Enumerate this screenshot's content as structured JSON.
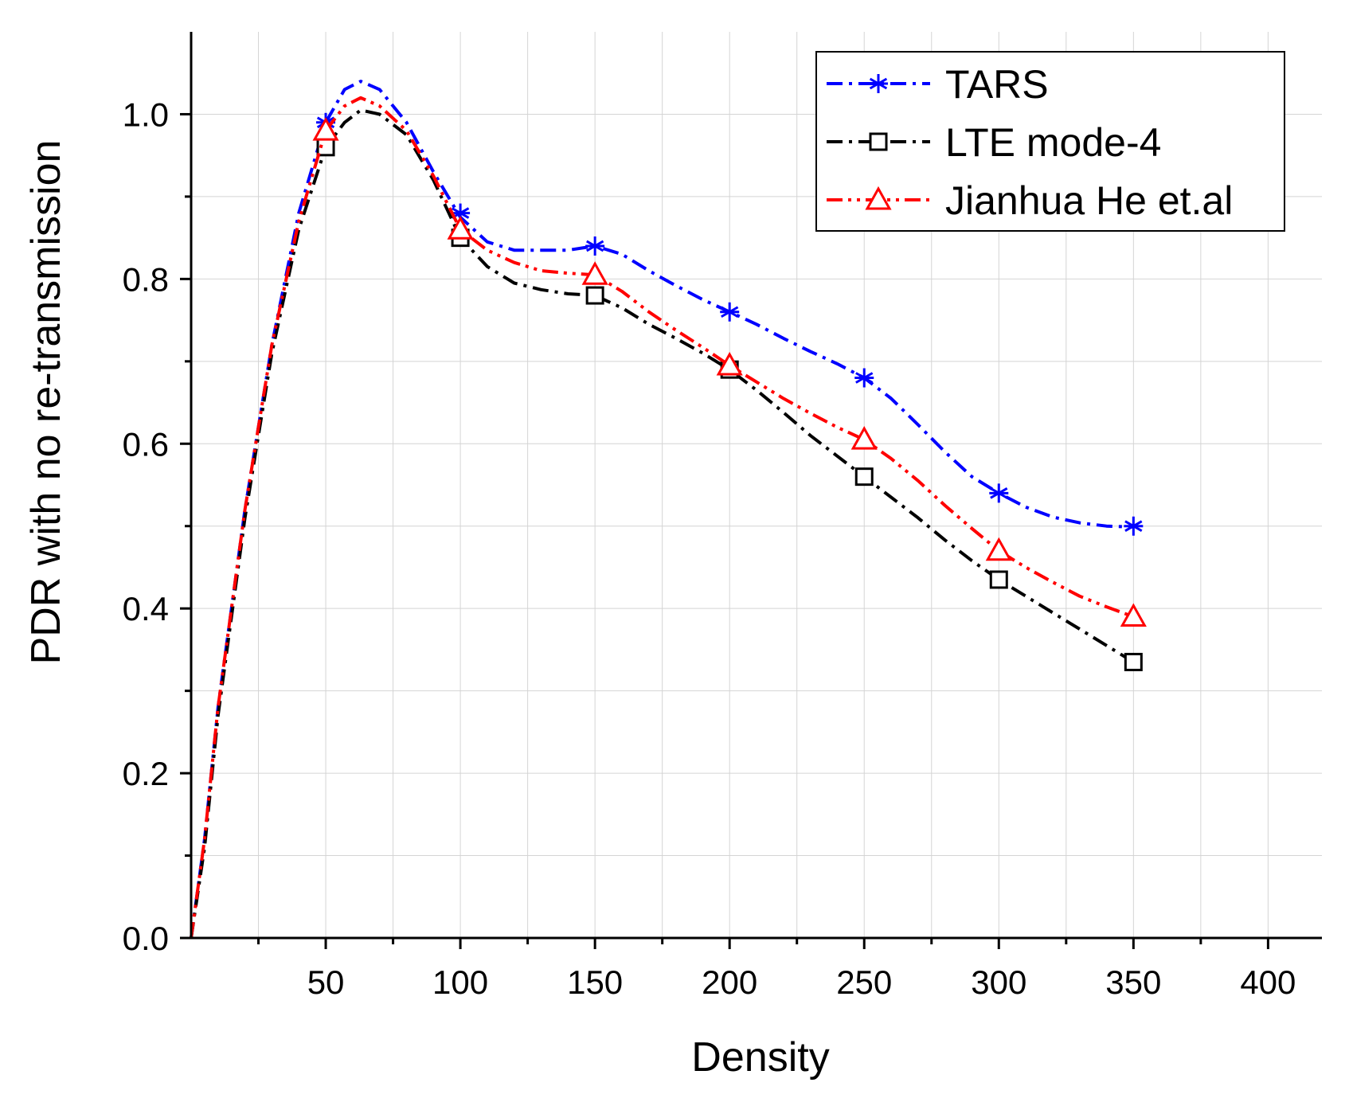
{
  "chart_data": {
    "type": "line",
    "title": "",
    "xlabel": "Density",
    "ylabel": "PDR with no re-transmission",
    "xlim": [
      0,
      420
    ],
    "ylim": [
      0,
      1.1
    ],
    "x_ticks": [
      50,
      100,
      150,
      200,
      250,
      300,
      350,
      400
    ],
    "x_minor_ticks": [
      25,
      75,
      125,
      175,
      225,
      275,
      325,
      375
    ],
    "y_ticks": [
      0.0,
      0.2,
      0.4,
      0.6,
      0.8,
      1.0
    ],
    "y_tick_labels": [
      "0.0",
      "0.2",
      "0.4",
      "0.6",
      "0.8",
      "1.0"
    ],
    "y_minor_ticks": [
      0.1,
      0.3,
      0.5,
      0.7,
      0.9
    ],
    "grid": true,
    "legend_position": "top-right",
    "series": [
      {
        "name": "TARS",
        "color": "#0000ff",
        "marker": "asterisk",
        "line_style": "dash-dot",
        "x": [
          0,
          50,
          100,
          150,
          200,
          250,
          300,
          350
        ],
        "y": [
          0.0,
          0.99,
          0.88,
          0.84,
          0.76,
          0.68,
          0.54,
          0.5
        ],
        "curve_x": [
          0,
          5,
          10,
          20,
          30,
          40,
          50,
          57,
          63,
          70,
          80,
          90,
          100,
          110,
          120,
          130,
          140,
          150,
          160,
          170,
          180,
          190,
          200,
          210,
          220,
          230,
          240,
          250,
          260,
          270,
          280,
          290,
          300,
          310,
          320,
          330,
          340,
          350
        ],
        "curve_y": [
          0.0,
          0.12,
          0.28,
          0.52,
          0.72,
          0.88,
          0.99,
          1.03,
          1.04,
          1.03,
          0.99,
          0.93,
          0.875,
          0.845,
          0.835,
          0.835,
          0.835,
          0.84,
          0.83,
          0.81,
          0.792,
          0.775,
          0.76,
          0.745,
          0.728,
          0.712,
          0.697,
          0.68,
          0.655,
          0.623,
          0.59,
          0.56,
          0.54,
          0.523,
          0.511,
          0.504,
          0.5,
          0.499
        ]
      },
      {
        "name": "LTE mode-4",
        "color": "#000000",
        "marker": "square",
        "line_style": "dash-dot",
        "x": [
          0,
          50,
          100,
          150,
          200,
          250,
          300,
          350
        ],
        "y": [
          0.0,
          0.96,
          0.85,
          0.78,
          0.69,
          0.56,
          0.435,
          0.335
        ],
        "curve_x": [
          0,
          5,
          10,
          20,
          30,
          40,
          50,
          57,
          63,
          70,
          80,
          90,
          100,
          110,
          120,
          130,
          140,
          150,
          160,
          170,
          180,
          190,
          200,
          210,
          220,
          230,
          240,
          250,
          260,
          270,
          280,
          290,
          300,
          310,
          320,
          330,
          340,
          350
        ],
        "curve_y": [
          0.0,
          0.11,
          0.27,
          0.51,
          0.71,
          0.86,
          0.96,
          0.99,
          1.005,
          1.0,
          0.975,
          0.92,
          0.85,
          0.815,
          0.795,
          0.787,
          0.782,
          0.78,
          0.765,
          0.745,
          0.728,
          0.71,
          0.69,
          0.665,
          0.638,
          0.61,
          0.585,
          0.56,
          0.535,
          0.51,
          0.483,
          0.458,
          0.435,
          0.415,
          0.395,
          0.375,
          0.355,
          0.335
        ]
      },
      {
        "name": "Jianhua He et.al",
        "color": "#ff0000",
        "marker": "triangle",
        "line_style": "dash-dot-dot",
        "x": [
          0,
          50,
          100,
          150,
          200,
          250,
          300,
          350
        ],
        "y": [
          0.0,
          0.98,
          0.86,
          0.805,
          0.695,
          0.605,
          0.47,
          0.39
        ],
        "curve_x": [
          0,
          5,
          10,
          20,
          30,
          40,
          50,
          57,
          63,
          70,
          80,
          90,
          100,
          110,
          120,
          130,
          140,
          150,
          160,
          170,
          180,
          190,
          200,
          210,
          220,
          230,
          240,
          250,
          260,
          270,
          280,
          290,
          300,
          310,
          320,
          330,
          340,
          350
        ],
        "curve_y": [
          0.0,
          0.12,
          0.28,
          0.52,
          0.72,
          0.87,
          0.98,
          1.01,
          1.02,
          1.01,
          0.98,
          0.925,
          0.86,
          0.835,
          0.82,
          0.81,
          0.807,
          0.805,
          0.785,
          0.76,
          0.738,
          0.717,
          0.695,
          0.675,
          0.655,
          0.637,
          0.62,
          0.605,
          0.582,
          0.555,
          0.525,
          0.497,
          0.47,
          0.45,
          0.432,
          0.415,
          0.402,
          0.39
        ]
      }
    ]
  }
}
